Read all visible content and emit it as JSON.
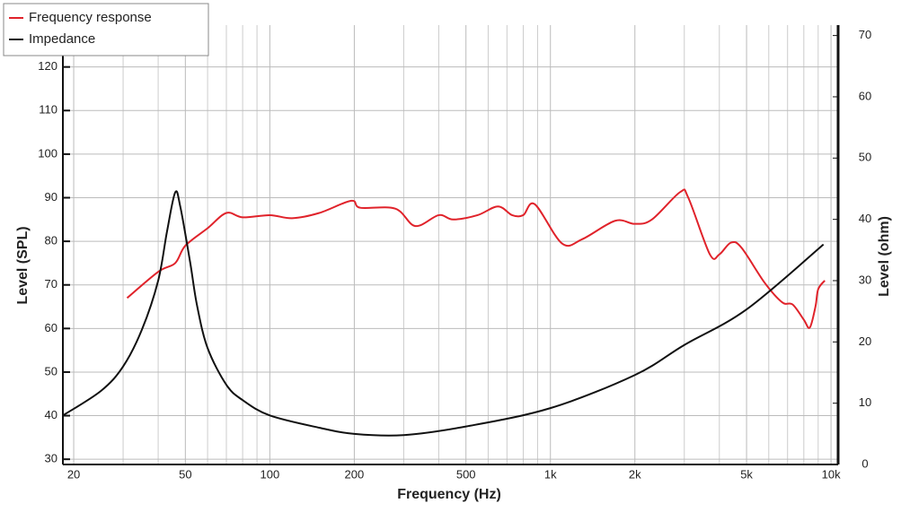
{
  "chart_data": {
    "type": "line",
    "x_label": "Frequency (Hz)",
    "y_label": "Level (SPL)",
    "y2_label": "Level (ohm)",
    "x_log": true,
    "grid": true,
    "legend": "top-left",
    "xlim": [
      18.3,
      10600
    ],
    "xticks": [
      20,
      50,
      100,
      200,
      500,
      {
        "value": 1000,
        "label": "1k"
      },
      {
        "value": 2000,
        "label": "2k"
      },
      {
        "value": 5000,
        "label": "5k"
      },
      {
        "value": 10000,
        "label": "10k"
      }
    ],
    "x_minor_grid": [
      30,
      40,
      60,
      70,
      80,
      90,
      300,
      400,
      600,
      700,
      800,
      900,
      3000,
      4000,
      6000,
      7000,
      8000,
      9000
    ],
    "ylim": [
      28.8,
      129.6
    ],
    "yticks": [
      30,
      40,
      50,
      60,
      70,
      80,
      90,
      100,
      110,
      120
    ],
    "y2lim": [
      0,
      71.7
    ],
    "y2ticks": [
      0,
      10,
      20,
      30,
      40,
      50,
      60,
      70
    ],
    "series": [
      {
        "name": "Frequency response",
        "color": "#e0222a",
        "x": [
          31,
          40,
          46,
          50,
          60,
          70,
          80,
          100,
          120,
          150,
          195,
          210,
          280,
          330,
          400,
          450,
          550,
          650,
          730,
          800,
          880,
          1100,
          1300,
          1700,
          2000,
          2300,
          2900,
          3100,
          3700,
          4000,
          4400,
          4800,
          5800,
          6700,
          7300,
          8000,
          8400,
          8800,
          9000,
          9500
        ],
        "values": [
          67,
          73,
          75,
          79,
          83,
          86.5,
          85.5,
          86,
          85.3,
          86.5,
          89.3,
          87.7,
          87.5,
          83.5,
          86,
          85,
          86,
          88,
          86,
          86,
          88.5,
          79.5,
          80.5,
          84.7,
          84,
          85,
          91.3,
          90,
          77,
          77,
          79.7,
          78.5,
          70.5,
          66,
          65.5,
          62,
          60.2,
          65,
          69,
          71
        ]
      },
      {
        "name": "Impedance",
        "color": "#111111",
        "axis": "y2",
        "x": [
          18.3,
          25,
          30,
          35,
          40,
          43,
          46,
          48,
          52,
          55,
          60,
          70,
          80,
          100,
          150,
          200,
          300,
          500,
          1000,
          2000,
          3000,
          5000,
          9400
        ],
        "values": [
          8,
          12,
          16,
          22,
          30,
          38,
          44.4,
          42,
          33,
          26,
          19,
          13,
          10.5,
          8,
          6,
          5,
          4.8,
          6.2,
          9.2,
          14.6,
          19.5,
          25.3,
          35.9
        ]
      }
    ]
  }
}
